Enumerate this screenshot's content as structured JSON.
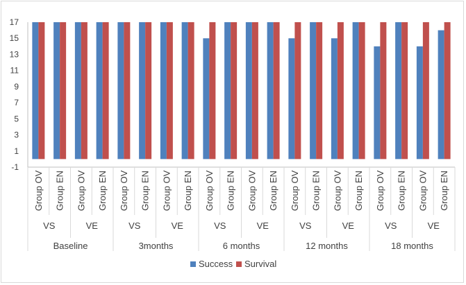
{
  "chart_data": {
    "type": "bar",
    "ylim": [
      -1,
      17
    ],
    "yticks": [
      -1,
      1,
      3,
      5,
      7,
      9,
      11,
      13,
      15,
      17
    ],
    "grid": false,
    "legend_position": "bottom",
    "colors": {
      "Success": "#4f81bd",
      "Survival": "#c0504d"
    },
    "time_points": [
      "Baseline",
      "3months",
      "6 months",
      "12 months",
      "18 months"
    ],
    "conditions": [
      "VS",
      "VE"
    ],
    "groups": [
      "Group OV",
      "Group EN"
    ],
    "categories": [
      "Baseline|VS|Group OV",
      "Baseline|VS|Group EN",
      "Baseline|VE|Group OV",
      "Baseline|VE|Group EN",
      "3months|VS|Group OV",
      "3months|VS|Group EN",
      "3months|VE|Group OV",
      "3months|VE|Group EN",
      "6 months|VS|Group OV",
      "6 months|VS|Group EN",
      "6 months|VE|Group OV",
      "6 months|VE|Group EN",
      "12 months|VS|Group OV",
      "12 months|VS|Group EN",
      "12 months|VE|Group OV",
      "12 months|VE|Group EN",
      "18 months|VS|Group OV",
      "18 months|VS|Group EN",
      "18 months|VE|Group OV",
      "18 months|VE|Group EN"
    ],
    "series": [
      {
        "name": "Success",
        "values": [
          17,
          17,
          17,
          17,
          17,
          17,
          17,
          17,
          15,
          17,
          17,
          17,
          15,
          17,
          15,
          17,
          14,
          17,
          14,
          16
        ]
      },
      {
        "name": "Survival",
        "values": [
          17,
          17,
          17,
          17,
          17,
          17,
          17,
          17,
          17,
          17,
          17,
          17,
          17,
          17,
          17,
          17,
          17,
          17,
          17,
          17
        ]
      }
    ]
  }
}
